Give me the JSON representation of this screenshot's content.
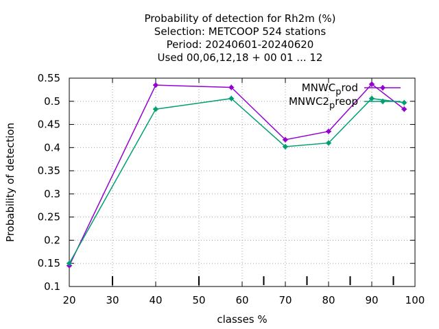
{
  "chart_data": {
    "type": "line",
    "title_lines": [
      "Probability of detection  for Rh2m (%)",
      "Selection: METCOOP    524 stations",
      "Period: 20240601-20240620",
      "Used  00,06,12,18 + 00 01 ... 12"
    ],
    "xlabel": "classes %",
    "ylabel": "Probability of detection",
    "xlim": [
      20,
      100
    ],
    "ylim": [
      0.1,
      0.55
    ],
    "xticks": [
      "20",
      "30",
      "40",
      "50",
      "60",
      "70",
      "80",
      "90",
      "100"
    ],
    "yticks": [
      "0.1",
      "0.15",
      "0.2",
      "0.25",
      "0.3",
      "0.35",
      "0.4",
      "0.45",
      "0.5",
      "0.55"
    ],
    "grid": true,
    "legend_position": "top-right",
    "series": [
      {
        "name": "MNWC_prod",
        "legend_base": "MNWC",
        "legend_sub": "p",
        "legend_rest": "rod",
        "color": "#9400d3",
        "x": [
          20,
          40,
          57.5,
          70,
          80,
          90,
          97.5
        ],
        "y": [
          0.145,
          0.535,
          0.53,
          0.417,
          0.435,
          0.537,
          0.483
        ]
      },
      {
        "name": "MNWC2_preop",
        "legend_base": "MNWC2",
        "legend_sub": "p",
        "legend_rest": "reop",
        "color": "#009e73",
        "x": [
          20,
          40,
          57.5,
          70,
          80,
          90,
          97.5
        ],
        "y": [
          0.15,
          0.483,
          0.506,
          0.402,
          0.41,
          0.506,
          0.497
        ]
      }
    ],
    "bottom_marks_x": [
      30,
      50,
      65,
      75,
      85,
      95
    ]
  }
}
